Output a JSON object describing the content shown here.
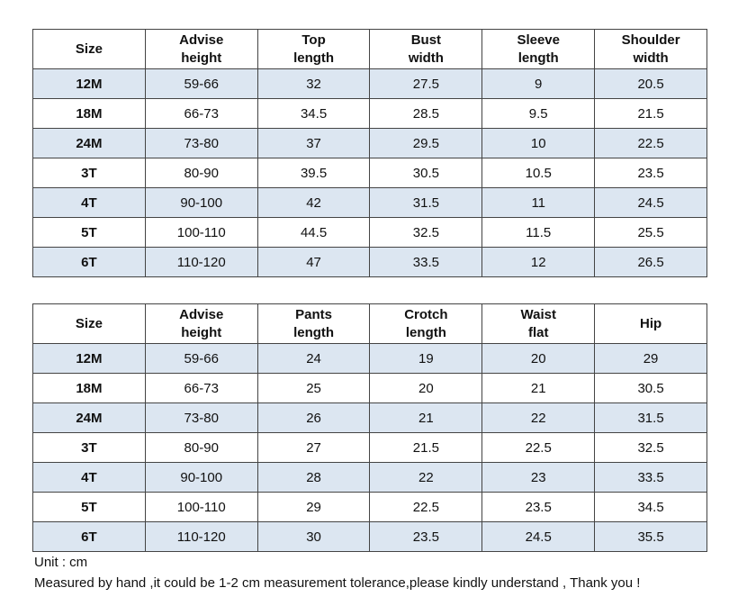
{
  "tables": [
    {
      "header": [
        [
          "Size"
        ],
        [
          "Advise",
          "height"
        ],
        [
          "Top",
          "length"
        ],
        [
          "Bust",
          "width"
        ],
        [
          "Sleeve",
          "length"
        ],
        [
          "Shoulder",
          "width"
        ]
      ],
      "rows": [
        [
          "12M",
          "59-66",
          "32",
          "27.5",
          "9",
          "20.5"
        ],
        [
          "18M",
          "66-73",
          "34.5",
          "28.5",
          "9.5",
          "21.5"
        ],
        [
          "24M",
          "73-80",
          "37",
          "29.5",
          "10",
          "22.5"
        ],
        [
          "3T",
          "80-90",
          "39.5",
          "30.5",
          "10.5",
          "23.5"
        ],
        [
          "4T",
          "90-100",
          "42",
          "31.5",
          "11",
          "24.5"
        ],
        [
          "5T",
          "100-110",
          "44.5",
          "32.5",
          "11.5",
          "25.5"
        ],
        [
          "6T",
          "110-120",
          "47",
          "33.5",
          "12",
          "26.5"
        ]
      ]
    },
    {
      "header": [
        [
          "Size"
        ],
        [
          "Advise",
          "height"
        ],
        [
          "Pants",
          "length"
        ],
        [
          "Crotch",
          "length"
        ],
        [
          "Waist",
          "flat"
        ],
        [
          "Hip"
        ]
      ],
      "rows": [
        [
          "12M",
          "59-66",
          "24",
          "19",
          "20",
          "29"
        ],
        [
          "18M",
          "66-73",
          "25",
          "20",
          "21",
          "30.5"
        ],
        [
          "24M",
          "73-80",
          "26",
          "21",
          "22",
          "31.5"
        ],
        [
          "3T",
          "80-90",
          "27",
          "21.5",
          "22.5",
          "32.5"
        ],
        [
          "4T",
          "90-100",
          "28",
          "22",
          "23",
          "33.5"
        ],
        [
          "5T",
          "100-110",
          "29",
          "22.5",
          "23.5",
          "34.5"
        ],
        [
          "6T",
          "110-120",
          "30",
          "23.5",
          "24.5",
          "35.5"
        ]
      ]
    }
  ],
  "notes": [
    "Unit : cm",
    "Measured by hand ,it could be 1-2 cm measurement tolerance,please kindly understand , Thank you !"
  ]
}
